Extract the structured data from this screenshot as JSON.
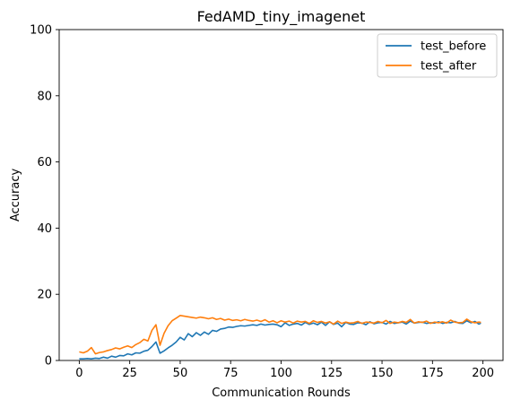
{
  "chart_data": {
    "type": "line",
    "title": "FedAMD_tiny_imagenet",
    "xlabel": "Communication Rounds",
    "ylabel": "Accuracy",
    "xlim": [
      -9.95,
      209.95
    ],
    "ylim": [
      0,
      100
    ],
    "xticks": [
      0,
      25,
      50,
      75,
      100,
      125,
      150,
      175,
      200
    ],
    "yticks": [
      0,
      20,
      40,
      60,
      80,
      100
    ],
    "legend": "top-right",
    "grid": false,
    "series": [
      {
        "name": "test_before",
        "color": "#1f77b4",
        "x": [
          0,
          2,
          4,
          6,
          8,
          10,
          12,
          14,
          16,
          18,
          20,
          22,
          24,
          26,
          28,
          30,
          32,
          34,
          36,
          38,
          40,
          42,
          44,
          46,
          48,
          50,
          52,
          54,
          56,
          58,
          60,
          62,
          64,
          66,
          68,
          70,
          72,
          74,
          76,
          78,
          80,
          82,
          84,
          86,
          88,
          90,
          92,
          94,
          96,
          98,
          100,
          102,
          104,
          106,
          108,
          110,
          112,
          114,
          116,
          118,
          120,
          122,
          124,
          126,
          128,
          130,
          132,
          134,
          136,
          138,
          140,
          142,
          144,
          146,
          148,
          150,
          152,
          154,
          156,
          158,
          160,
          162,
          164,
          166,
          168,
          170,
          172,
          174,
          176,
          178,
          180,
          182,
          184,
          186,
          188,
          190,
          192,
          194,
          196,
          198,
          199
        ],
        "values": [
          0.5,
          0.5,
          0.6,
          0.5,
          0.7,
          0.6,
          1.0,
          0.7,
          1.3,
          1.0,
          1.5,
          1.4,
          2.0,
          1.7,
          2.3,
          2.2,
          2.8,
          3.1,
          4.2,
          5.6,
          2.2,
          2.9,
          3.8,
          4.6,
          5.6,
          7.0,
          6.2,
          8.1,
          7.2,
          8.4,
          7.6,
          8.6,
          7.9,
          9.1,
          8.8,
          9.5,
          9.7,
          10.1,
          10.0,
          10.3,
          10.5,
          10.4,
          10.6,
          10.8,
          10.6,
          11.0,
          10.7,
          10.9,
          11.0,
          10.8,
          10.2,
          11.4,
          10.6,
          11.0,
          11.2,
          10.7,
          11.5,
          10.9,
          11.3,
          10.8,
          11.6,
          10.6,
          11.7,
          10.9,
          11.3,
          10.2,
          11.5,
          11.0,
          10.9,
          11.4,
          11.3,
          10.8,
          11.7,
          11.1,
          11.4,
          11.5,
          11.0,
          11.8,
          11.2,
          11.4,
          11.6,
          11.0,
          11.9,
          11.3,
          11.5,
          11.6,
          11.2,
          11.4,
          11.3,
          11.7,
          11.2,
          11.5,
          11.4,
          11.8,
          11.3,
          11.2,
          12.0,
          11.4,
          11.8,
          11.0,
          11.3
        ]
      },
      {
        "name": "test_after",
        "color": "#ff7f0e",
        "x": [
          0,
          2,
          4,
          6,
          8,
          10,
          12,
          14,
          16,
          18,
          20,
          22,
          24,
          26,
          28,
          30,
          32,
          34,
          36,
          38,
          40,
          42,
          44,
          46,
          48,
          50,
          52,
          54,
          56,
          58,
          60,
          62,
          64,
          66,
          68,
          70,
          72,
          74,
          76,
          78,
          80,
          82,
          84,
          86,
          88,
          90,
          92,
          94,
          96,
          98,
          100,
          102,
          104,
          106,
          108,
          110,
          112,
          114,
          116,
          118,
          120,
          122,
          124,
          126,
          128,
          130,
          132,
          134,
          136,
          138,
          140,
          142,
          144,
          146,
          148,
          150,
          152,
          154,
          156,
          158,
          160,
          162,
          164,
          166,
          168,
          170,
          172,
          174,
          176,
          178,
          180,
          182,
          184,
          186,
          188,
          190,
          192,
          194,
          196,
          198,
          199
        ],
        "values": [
          2.6,
          2.3,
          2.8,
          3.9,
          2.0,
          2.4,
          2.6,
          3.0,
          3.3,
          3.8,
          3.5,
          4.0,
          4.4,
          3.9,
          4.8,
          5.4,
          6.4,
          5.9,
          9.1,
          10.8,
          4.6,
          8.2,
          10.5,
          12.0,
          12.8,
          13.6,
          13.4,
          13.2,
          13.0,
          12.8,
          13.1,
          12.9,
          12.6,
          12.9,
          12.4,
          12.7,
          12.2,
          12.5,
          12.1,
          12.3,
          12.0,
          12.4,
          12.1,
          11.9,
          12.2,
          11.8,
          12.3,
          11.6,
          12.0,
          11.4,
          12.0,
          11.6,
          11.9,
          11.3,
          11.9,
          11.6,
          11.8,
          11.2,
          12.0,
          11.5,
          11.8,
          11.3,
          11.7,
          11.0,
          11.9,
          11.2,
          11.6,
          11.3,
          11.4,
          11.8,
          11.2,
          11.6,
          11.5,
          11.3,
          11.8,
          11.4,
          12.1,
          11.2,
          11.6,
          11.4,
          11.8,
          11.5,
          12.4,
          11.3,
          11.7,
          11.5,
          11.9,
          11.2,
          11.6,
          11.4,
          11.7,
          11.3,
          12.2,
          11.6,
          11.4,
          11.5,
          12.5,
          11.7,
          11.4,
          11.6,
          11.5
        ]
      }
    ]
  }
}
